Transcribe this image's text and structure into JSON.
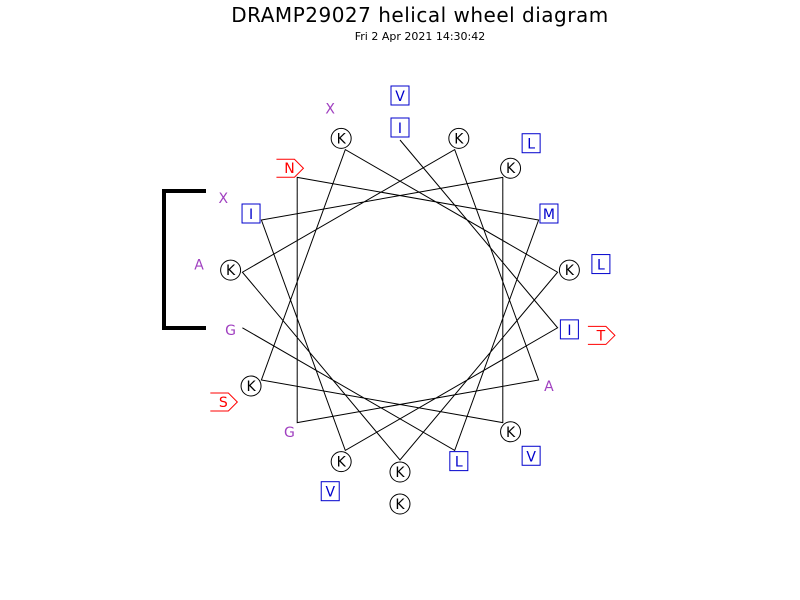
{
  "header": {
    "title": "DRAMP29027 helical wheel diagram",
    "timestamp": "Fri  2 Apr 2021 14:30:42"
  },
  "colors": {
    "line": "#000000",
    "hydrophobic": "#0000cc",
    "charged": "#000000",
    "polar": "#ff0000",
    "other": "#a040c0"
  },
  "residue_classes": {
    "hydrophobic": "square",
    "charged": "circle",
    "polar": "pentagon",
    "other": "plain text"
  },
  "residues": [
    {
      "label": "I",
      "cls": "hydrophobic"
    },
    {
      "label": "I",
      "cls": "hydrophobic"
    },
    {
      "label": "K",
      "cls": "charged"
    },
    {
      "label": "I",
      "cls": "hydrophobic"
    },
    {
      "label": "K",
      "cls": "charged"
    },
    {
      "label": "K",
      "cls": "charged"
    },
    {
      "label": "K",
      "cls": "charged"
    },
    {
      "label": "K",
      "cls": "charged"
    },
    {
      "label": "K",
      "cls": "charged"
    },
    {
      "label": "K",
      "cls": "charged"
    },
    {
      "label": "K",
      "cls": "charged"
    },
    {
      "label": "K",
      "cls": "charged"
    },
    {
      "label": "A",
      "cls": "other"
    },
    {
      "label": "G",
      "cls": "other"
    },
    {
      "label": "N",
      "cls": "polar"
    },
    {
      "label": "M",
      "cls": "hydrophobic"
    },
    {
      "label": "L",
      "cls": "hydrophobic"
    },
    {
      "label": "G",
      "cls": "other"
    },
    {
      "label": "V",
      "cls": "hydrophobic"
    },
    {
      "label": "T",
      "cls": "polar"
    },
    {
      "label": "V",
      "cls": "hydrophobic"
    },
    {
      "label": "X",
      "cls": "other"
    },
    {
      "label": "L",
      "cls": "hydrophobic"
    },
    {
      "label": "V",
      "cls": "hydrophobic"
    },
    {
      "label": "S",
      "cls": "polar"
    },
    {
      "label": "X",
      "cls": "other"
    },
    {
      "label": "L",
      "cls": "hydrophobic"
    },
    {
      "label": "K",
      "cls": "charged"
    },
    {
      "label": "A",
      "cls": "other"
    }
  ]
}
